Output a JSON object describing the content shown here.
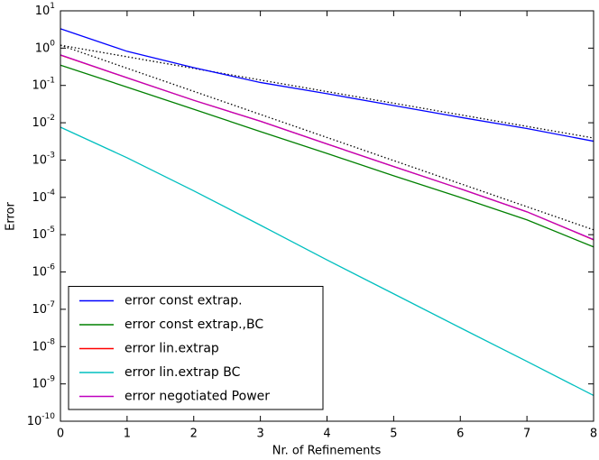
{
  "chart_data": {
    "type": "line",
    "x_label": "Nr. of Refinements",
    "y_label": "Error",
    "log_y": true,
    "legend_position": "lower left",
    "x": [
      0,
      1,
      2,
      3,
      4,
      5,
      6,
      7,
      8
    ],
    "xlim": [
      0,
      8
    ],
    "xticks": [
      0,
      1,
      2,
      3,
      4,
      5,
      6,
      7,
      8
    ],
    "ylim": [
      1e-10,
      10
    ],
    "yticks": [
      {
        "value": 10,
        "label": "10^1"
      },
      {
        "value": 1,
        "label": "10^0"
      },
      {
        "value": 0.1,
        "label": "10^-1"
      },
      {
        "value": 0.01,
        "label": "10^-2"
      },
      {
        "value": 0.001,
        "label": "10^-3"
      },
      {
        "value": 0.0001,
        "label": "10^-4"
      },
      {
        "value": 1e-05,
        "label": "10^-5"
      },
      {
        "value": 1e-06,
        "label": "10^-6"
      },
      {
        "value": 1e-07,
        "label": "10^-7"
      },
      {
        "value": 1e-08,
        "label": "10^-8"
      },
      {
        "value": 1e-09,
        "label": "10^-9"
      },
      {
        "value": 1e-10,
        "label": "10^-10"
      }
    ],
    "series": [
      {
        "name": "error const extrap.",
        "color": "#0000ff",
        "values": [
          3.3,
          0.82,
          0.3,
          0.12,
          0.06,
          0.029,
          0.014,
          0.007,
          0.0032
        ]
      },
      {
        "name": "error const extrap.,BC",
        "color": "#008000",
        "values": [
          0.35,
          0.09,
          0.023,
          0.0058,
          0.0015,
          0.00038,
          0.0001,
          2.5e-05,
          4.7e-06
        ]
      },
      {
        "name": "error lin.extrap",
        "color": "#ff0000",
        "values": [
          0.65,
          0.16,
          0.04,
          0.011,
          0.0027,
          0.00067,
          0.00017,
          4.1e-05,
          7.3e-06
        ]
      },
      {
        "name": "error lin.extrap BC",
        "color": "#00bfbf",
        "values": [
          0.0076,
          0.00115,
          0.00015,
          1.8e-05,
          2.1e-06,
          2.6e-07,
          3.2e-08,
          4e-09,
          4.9e-10
        ]
      },
      {
        "name": "error negotiated Power",
        "color": "#bf00bf",
        "values": [
          0.66,
          0.16,
          0.04,
          0.011,
          0.0027,
          0.00067,
          0.00017,
          4.1e-05,
          7.4e-06
        ]
      }
    ],
    "reference_lines": [
      {
        "color": "#000000",
        "x": [
          0,
          8
        ],
        "values": [
          1.2,
          0.0039
        ]
      },
      {
        "color": "#000000",
        "x": [
          0,
          8
        ],
        "values": [
          1.2,
          1.35e-05
        ]
      }
    ]
  }
}
